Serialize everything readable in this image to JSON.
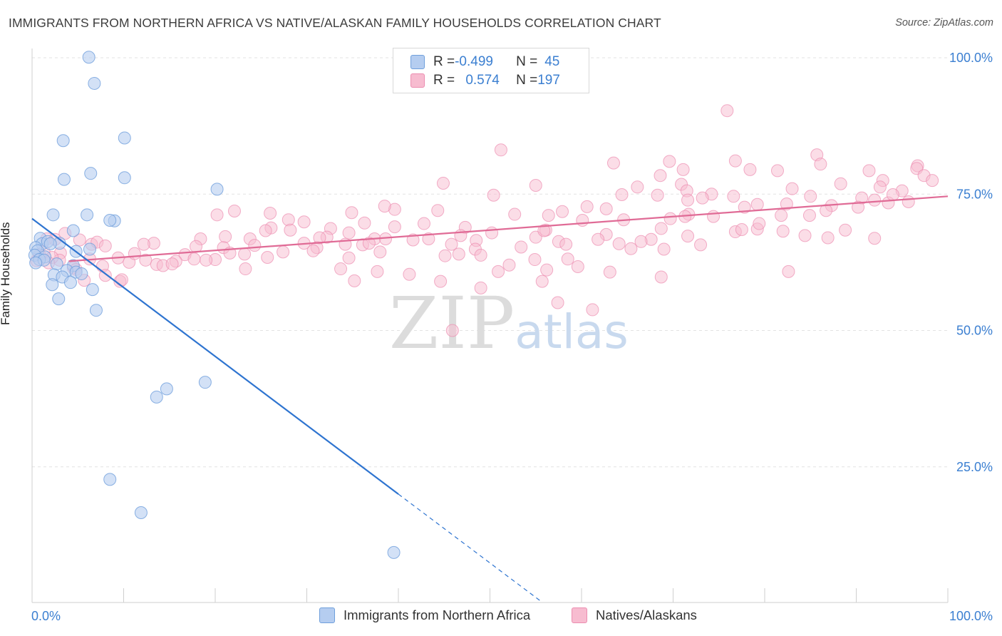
{
  "title": "IMMIGRANTS FROM NORTHERN AFRICA VS NATIVE/ALASKAN FAMILY HOUSEHOLDS CORRELATION CHART",
  "source": "Source: ZipAtlas.com",
  "watermark": {
    "zip": "ZIP",
    "atlas": "atlas"
  },
  "legend": {
    "series1": {
      "r_label": "R = ",
      "r_value": "-0.499",
      "n_label": "N = ",
      "n_value": "45"
    },
    "series2": {
      "r_label": "R = ",
      "r_value": "0.574",
      "n_label": "N = ",
      "n_value": "197"
    }
  },
  "bottom_legend": {
    "series1": "Immigrants from Northern Africa",
    "series2": "Natives/Alaskans"
  },
  "colors": {
    "blue_fill": "#b5cdf0",
    "blue_stroke": "#6f9fdc",
    "blue_line": "#2e74d0",
    "pink_fill": "#f7bcd0",
    "pink_stroke": "#ec8db0",
    "pink_line": "#e06b96",
    "tick_label": "#3b7fd1"
  },
  "chart_data": {
    "type": "scatter",
    "title": "IMMIGRANTS FROM NORTHERN AFRICA VS NATIVE/ALASKAN FAMILY HOUSEHOLDS CORRELATION CHART",
    "xlabel": "",
    "ylabel": "Family Households",
    "xlim": [
      0,
      100
    ],
    "ylim": [
      0,
      102
    ],
    "x_tick_labels": [
      "0.0%",
      "100.0%"
    ],
    "y_tick_labels": [
      "25.0%",
      "50.0%",
      "75.0%",
      "100.0%"
    ],
    "y_ticks": [
      25,
      50,
      75,
      100
    ],
    "grid": true,
    "legend_position": "top-center",
    "series": [
      {
        "name": "Immigrants from Northern Africa",
        "r": -0.499,
        "n": 45,
        "trend": {
          "x0": 0,
          "y0": 70.5,
          "x1": 40,
          "y1": 20.0,
          "dashed_to_x": 55.5
        },
        "points": [
          [
            6.2,
            100.1
          ],
          [
            6.8,
            95.3
          ],
          [
            3.4,
            84.8
          ],
          [
            10.1,
            85.3
          ],
          [
            3.5,
            77.7
          ],
          [
            6.4,
            78.8
          ],
          [
            10.1,
            78.0
          ],
          [
            20.2,
            75.9
          ],
          [
            2.3,
            71.2
          ],
          [
            6.0,
            71.2
          ],
          [
            9.0,
            70.1
          ],
          [
            8.5,
            70.2
          ],
          [
            4.5,
            68.3
          ],
          [
            0.9,
            66.9
          ],
          [
            3.0,
            66.0
          ],
          [
            1.1,
            65.9
          ],
          [
            1.7,
            66.3
          ],
          [
            2.0,
            65.9
          ],
          [
            0.4,
            65.2
          ],
          [
            0.6,
            64.6
          ],
          [
            4.8,
            64.5
          ],
          [
            6.3,
            64.9
          ],
          [
            0.3,
            63.8
          ],
          [
            1.4,
            63.5
          ],
          [
            0.8,
            63.0
          ],
          [
            1.3,
            62.9
          ],
          [
            0.4,
            62.4
          ],
          [
            2.7,
            62.2
          ],
          [
            4.5,
            61.9
          ],
          [
            3.8,
            61.0
          ],
          [
            4.8,
            60.7
          ],
          [
            5.4,
            60.4
          ],
          [
            2.4,
            60.2
          ],
          [
            3.3,
            59.8
          ],
          [
            4.2,
            58.8
          ],
          [
            2.2,
            58.4
          ],
          [
            6.6,
            57.5
          ],
          [
            2.9,
            55.8
          ],
          [
            7.0,
            53.7
          ],
          [
            18.9,
            40.5
          ],
          [
            14.7,
            39.3
          ],
          [
            13.6,
            37.8
          ],
          [
            8.5,
            22.7
          ],
          [
            11.9,
            16.6
          ],
          [
            39.5,
            9.3
          ]
        ]
      },
      {
        "name": "Natives/Alaskans",
        "r": 0.574,
        "n": 197,
        "trend": {
          "x0": 4.0,
          "y0": 62.7,
          "x1": 100,
          "y1": 74.6
        },
        "points": [
          [
            75.9,
            90.3
          ],
          [
            51.2,
            83.1
          ],
          [
            69.6,
            81.0
          ],
          [
            63.5,
            80.7
          ],
          [
            85.7,
            82.2
          ],
          [
            76.8,
            81.1
          ],
          [
            96.7,
            80.2
          ],
          [
            86.1,
            80.5
          ],
          [
            78.4,
            79.5
          ],
          [
            81.4,
            79.3
          ],
          [
            71.1,
            79.5
          ],
          [
            96.6,
            79.7
          ],
          [
            91.4,
            79.3
          ],
          [
            97.4,
            78.4
          ],
          [
            68.6,
            78.4
          ],
          [
            92.9,
            77.5
          ],
          [
            98.3,
            77.5
          ],
          [
            55.0,
            76.6
          ],
          [
            70.9,
            76.8
          ],
          [
            44.9,
            77.0
          ],
          [
            92.6,
            76.3
          ],
          [
            66.1,
            76.3
          ],
          [
            83.0,
            76.0
          ],
          [
            71.5,
            75.6
          ],
          [
            95.0,
            75.6
          ],
          [
            64.4,
            74.9
          ],
          [
            50.4,
            74.8
          ],
          [
            74.2,
            75.0
          ],
          [
            76.6,
            74.6
          ],
          [
            85.0,
            74.6
          ],
          [
            73.2,
            74.3
          ],
          [
            68.3,
            74.8
          ],
          [
            90.6,
            74.3
          ],
          [
            95.7,
            73.6
          ],
          [
            92.0,
            73.9
          ],
          [
            93.5,
            73.4
          ],
          [
            79.2,
            73.1
          ],
          [
            77.8,
            72.6
          ],
          [
            60.6,
            72.7
          ],
          [
            82.4,
            73.2
          ],
          [
            87.3,
            72.9
          ],
          [
            39.6,
            72.2
          ],
          [
            38.5,
            72.8
          ],
          [
            62.7,
            72.3
          ],
          [
            86.7,
            72.0
          ],
          [
            44.3,
            72.0
          ],
          [
            57.9,
            71.8
          ],
          [
            34.9,
            71.6
          ],
          [
            22.1,
            71.9
          ],
          [
            20.2,
            71.2
          ],
          [
            26.0,
            71.5
          ],
          [
            52.7,
            71.3
          ],
          [
            56.4,
            71.1
          ],
          [
            81.8,
            71.1
          ],
          [
            71.7,
            71.3
          ],
          [
            69.7,
            70.5
          ],
          [
            74.4,
            70.9
          ],
          [
            64.6,
            70.3
          ],
          [
            71.3,
            70.9
          ],
          [
            60.1,
            70.2
          ],
          [
            28.0,
            70.3
          ],
          [
            29.7,
            69.9
          ],
          [
            42.8,
            69.6
          ],
          [
            36.3,
            69.7
          ],
          [
            39.6,
            69.0
          ],
          [
            26.1,
            68.8
          ],
          [
            79.2,
            68.6
          ],
          [
            32.6,
            68.7
          ],
          [
            47.3,
            68.9
          ],
          [
            68.7,
            68.7
          ],
          [
            56.1,
            68.4
          ],
          [
            76.8,
            68.1
          ],
          [
            88.8,
            68.4
          ],
          [
            28.2,
            68.4
          ],
          [
            82.0,
            68.2
          ],
          [
            34.6,
            67.9
          ],
          [
            50.2,
            67.9
          ],
          [
            46.8,
            67.4
          ],
          [
            62.7,
            67.6
          ],
          [
            71.6,
            67.3
          ],
          [
            84.4,
            67.4
          ],
          [
            21.1,
            67.2
          ],
          [
            86.9,
            67.0
          ],
          [
            92.0,
            66.9
          ],
          [
            37.4,
            66.8
          ],
          [
            43.3,
            66.8
          ],
          [
            48.5,
            66.5
          ],
          [
            23.8,
            66.8
          ],
          [
            32.2,
            67.1
          ],
          [
            55.0,
            67.1
          ],
          [
            67.6,
            66.7
          ],
          [
            38.6,
            66.8
          ],
          [
            61.8,
            66.7
          ],
          [
            57.5,
            66.3
          ],
          [
            18.4,
            66.8
          ],
          [
            41.6,
            66.6
          ],
          [
            29.7,
            66.0
          ],
          [
            34.2,
            65.8
          ],
          [
            24.3,
            65.6
          ],
          [
            31.1,
            65.2
          ],
          [
            58.3,
            65.8
          ],
          [
            20.9,
            65.2
          ],
          [
            36.1,
            65.7
          ],
          [
            64.1,
            65.9
          ],
          [
            13.3,
            66.0
          ],
          [
            12.2,
            65.8
          ],
          [
            17.9,
            65.4
          ],
          [
            45.8,
            65.8
          ],
          [
            53.4,
            65.3
          ],
          [
            69.0,
            64.9
          ],
          [
            65.4,
            65.0
          ],
          [
            48.4,
            64.9
          ],
          [
            30.7,
            64.6
          ],
          [
            27.4,
            64.4
          ],
          [
            38.0,
            64.4
          ],
          [
            46.6,
            64.0
          ],
          [
            21.6,
            64.2
          ],
          [
            49.0,
            63.8
          ],
          [
            23.2,
            64.0
          ],
          [
            16.7,
            63.9
          ],
          [
            25.7,
            63.4
          ],
          [
            34.6,
            63.3
          ],
          [
            17.7,
            63.1
          ],
          [
            54.9,
            63.0
          ],
          [
            58.5,
            63.1
          ],
          [
            20.0,
            63.0
          ],
          [
            15.7,
            62.7
          ],
          [
            12.4,
            62.9
          ],
          [
            13.6,
            62.1
          ],
          [
            10.6,
            62.5
          ],
          [
            14.3,
            61.9
          ],
          [
            7.7,
            61.8
          ],
          [
            4.5,
            61.5
          ],
          [
            56.2,
            61.1
          ],
          [
            23.3,
            61.3
          ],
          [
            33.7,
            61.3
          ],
          [
            59.6,
            61.7
          ],
          [
            50.9,
            60.8
          ],
          [
            37.7,
            60.8
          ],
          [
            63.1,
            60.7
          ],
          [
            82.6,
            60.8
          ],
          [
            41.2,
            60.3
          ],
          [
            35.2,
            59.1
          ],
          [
            68.7,
            59.8
          ],
          [
            44.6,
            59.0
          ],
          [
            55.7,
            59.0
          ],
          [
            5.7,
            59.2
          ],
          [
            9.6,
            59.0
          ],
          [
            9.8,
            59.3
          ],
          [
            49.0,
            57.8
          ],
          [
            57.4,
            55.1
          ],
          [
            61.2,
            53.8
          ],
          [
            45.9,
            50.0
          ],
          [
            3.6,
            67.8
          ],
          [
            5.2,
            66.6
          ],
          [
            6.5,
            65.8
          ],
          [
            7.1,
            66.2
          ],
          [
            8.0,
            65.5
          ],
          [
            1.6,
            66.8
          ],
          [
            2.5,
            66.7
          ],
          [
            3.1,
            64.2
          ],
          [
            1.3,
            64.5
          ],
          [
            0.8,
            63.9
          ],
          [
            0.5,
            62.8
          ],
          [
            6.3,
            63.1
          ],
          [
            9.4,
            63.3
          ],
          [
            11.2,
            64.1
          ],
          [
            15.3,
            62.2
          ],
          [
            19.0,
            62.9
          ],
          [
            3.0,
            62.9
          ],
          [
            2.2,
            63.4
          ],
          [
            1.8,
            62.4
          ],
          [
            4.8,
            61.2
          ],
          [
            8.0,
            60.1
          ],
          [
            25.5,
            68.3
          ],
          [
            31.4,
            67.0
          ],
          [
            36.8,
            66.0
          ],
          [
            45.1,
            63.7
          ],
          [
            52.1,
            62.0
          ],
          [
            55.9,
            68.3
          ],
          [
            66.5,
            66.3
          ],
          [
            73.0,
            65.7
          ],
          [
            79.4,
            69.6
          ],
          [
            84.9,
            71.1
          ],
          [
            88.3,
            76.9
          ],
          [
            90.2,
            72.6
          ],
          [
            94.0,
            74.9
          ],
          [
            77.5,
            68.5
          ],
          [
            71.6,
            73.9
          ]
        ]
      }
    ]
  }
}
